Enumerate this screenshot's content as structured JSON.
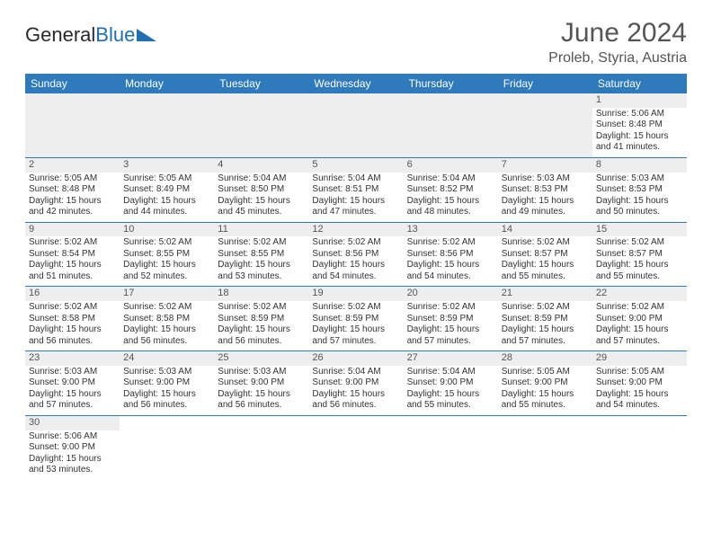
{
  "brand": {
    "part1": "General",
    "part2": "Blue"
  },
  "header": {
    "month_title": "June 2024",
    "location": "Proleb, Styria, Austria"
  },
  "colors": {
    "header_bg": "#2f79bd",
    "header_text": "#ffffff",
    "daynum_bg": "#eeeeee",
    "rule": "#2f79bd",
    "logo_blue": "#1f6fb2",
    "text": "#333333"
  },
  "typography": {
    "month_title_fontsize": 30,
    "location_fontsize": 16,
    "weekday_fontsize": 12,
    "daynum_fontsize": 11,
    "cell_fontsize": 10
  },
  "weekdays": [
    "Sunday",
    "Monday",
    "Tuesday",
    "Wednesday",
    "Thursday",
    "Friday",
    "Saturday"
  ],
  "weeks": [
    [
      null,
      null,
      null,
      null,
      null,
      null,
      {
        "n": "1",
        "sunrise": "5:06 AM",
        "sunset": "8:48 PM",
        "daylight": "15 hours and 41 minutes."
      }
    ],
    [
      {
        "n": "2",
        "sunrise": "5:05 AM",
        "sunset": "8:48 PM",
        "daylight": "15 hours and 42 minutes."
      },
      {
        "n": "3",
        "sunrise": "5:05 AM",
        "sunset": "8:49 PM",
        "daylight": "15 hours and 44 minutes."
      },
      {
        "n": "4",
        "sunrise": "5:04 AM",
        "sunset": "8:50 PM",
        "daylight": "15 hours and 45 minutes."
      },
      {
        "n": "5",
        "sunrise": "5:04 AM",
        "sunset": "8:51 PM",
        "daylight": "15 hours and 47 minutes."
      },
      {
        "n": "6",
        "sunrise": "5:04 AM",
        "sunset": "8:52 PM",
        "daylight": "15 hours and 48 minutes."
      },
      {
        "n": "7",
        "sunrise": "5:03 AM",
        "sunset": "8:53 PM",
        "daylight": "15 hours and 49 minutes."
      },
      {
        "n": "8",
        "sunrise": "5:03 AM",
        "sunset": "8:53 PM",
        "daylight": "15 hours and 50 minutes."
      }
    ],
    [
      {
        "n": "9",
        "sunrise": "5:02 AM",
        "sunset": "8:54 PM",
        "daylight": "15 hours and 51 minutes."
      },
      {
        "n": "10",
        "sunrise": "5:02 AM",
        "sunset": "8:55 PM",
        "daylight": "15 hours and 52 minutes."
      },
      {
        "n": "11",
        "sunrise": "5:02 AM",
        "sunset": "8:55 PM",
        "daylight": "15 hours and 53 minutes."
      },
      {
        "n": "12",
        "sunrise": "5:02 AM",
        "sunset": "8:56 PM",
        "daylight": "15 hours and 54 minutes."
      },
      {
        "n": "13",
        "sunrise": "5:02 AM",
        "sunset": "8:56 PM",
        "daylight": "15 hours and 54 minutes."
      },
      {
        "n": "14",
        "sunrise": "5:02 AM",
        "sunset": "8:57 PM",
        "daylight": "15 hours and 55 minutes."
      },
      {
        "n": "15",
        "sunrise": "5:02 AM",
        "sunset": "8:57 PM",
        "daylight": "15 hours and 55 minutes."
      }
    ],
    [
      {
        "n": "16",
        "sunrise": "5:02 AM",
        "sunset": "8:58 PM",
        "daylight": "15 hours and 56 minutes."
      },
      {
        "n": "17",
        "sunrise": "5:02 AM",
        "sunset": "8:58 PM",
        "daylight": "15 hours and 56 minutes."
      },
      {
        "n": "18",
        "sunrise": "5:02 AM",
        "sunset": "8:59 PM",
        "daylight": "15 hours and 56 minutes."
      },
      {
        "n": "19",
        "sunrise": "5:02 AM",
        "sunset": "8:59 PM",
        "daylight": "15 hours and 57 minutes."
      },
      {
        "n": "20",
        "sunrise": "5:02 AM",
        "sunset": "8:59 PM",
        "daylight": "15 hours and 57 minutes."
      },
      {
        "n": "21",
        "sunrise": "5:02 AM",
        "sunset": "8:59 PM",
        "daylight": "15 hours and 57 minutes."
      },
      {
        "n": "22",
        "sunrise": "5:02 AM",
        "sunset": "9:00 PM",
        "daylight": "15 hours and 57 minutes."
      }
    ],
    [
      {
        "n": "23",
        "sunrise": "5:03 AM",
        "sunset": "9:00 PM",
        "daylight": "15 hours and 57 minutes."
      },
      {
        "n": "24",
        "sunrise": "5:03 AM",
        "sunset": "9:00 PM",
        "daylight": "15 hours and 56 minutes."
      },
      {
        "n": "25",
        "sunrise": "5:03 AM",
        "sunset": "9:00 PM",
        "daylight": "15 hours and 56 minutes."
      },
      {
        "n": "26",
        "sunrise": "5:04 AM",
        "sunset": "9:00 PM",
        "daylight": "15 hours and 56 minutes."
      },
      {
        "n": "27",
        "sunrise": "5:04 AM",
        "sunset": "9:00 PM",
        "daylight": "15 hours and 55 minutes."
      },
      {
        "n": "28",
        "sunrise": "5:05 AM",
        "sunset": "9:00 PM",
        "daylight": "15 hours and 55 minutes."
      },
      {
        "n": "29",
        "sunrise": "5:05 AM",
        "sunset": "9:00 PM",
        "daylight": "15 hours and 54 minutes."
      }
    ],
    [
      {
        "n": "30",
        "sunrise": "5:06 AM",
        "sunset": "9:00 PM",
        "daylight": "15 hours and 53 minutes."
      },
      null,
      null,
      null,
      null,
      null,
      null
    ]
  ],
  "labels": {
    "sunrise_prefix": "Sunrise: ",
    "sunset_prefix": "Sunset: ",
    "daylight_prefix": "Daylight: "
  }
}
